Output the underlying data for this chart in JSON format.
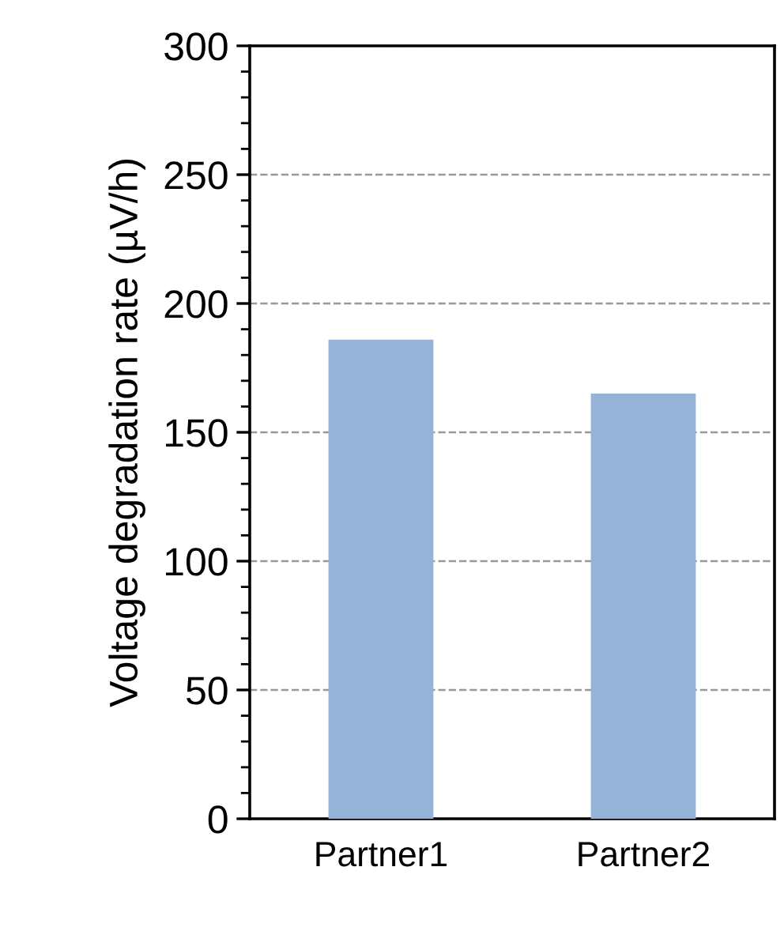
{
  "chart_data": {
    "type": "bar",
    "ylabel": "Voltage degradation rate (µV/h)",
    "categories": [
      "Partner1",
      "Partner2"
    ],
    "values": [
      186,
      165
    ],
    "color": "#95b3d7",
    "ylim": [
      0,
      300
    ],
    "yticks": [
      0,
      50,
      100,
      150,
      200,
      250,
      300
    ],
    "grid": "y"
  }
}
